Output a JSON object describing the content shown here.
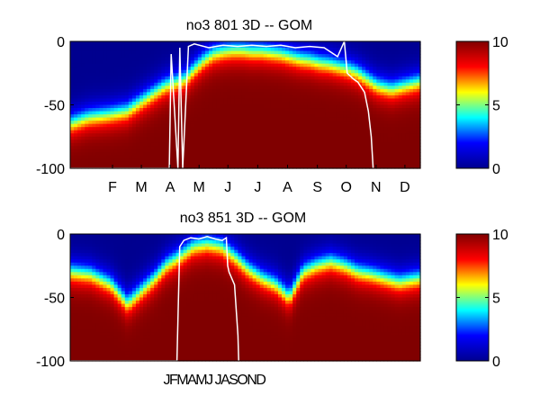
{
  "colormap": "jet",
  "colormap_stops": [
    "#00008f",
    "#0000ff",
    "#00ffff",
    "#ffff00",
    "#ff0000",
    "#800000"
  ],
  "contour_line_color": "#ffffff",
  "chart_data": [
    {
      "type": "heatmap",
      "title": "no3  801 3D   -- GOM",
      "xlabel": "",
      "ylabel": "",
      "ylim": [
        -100,
        0
      ],
      "yticks": [
        0,
        -50,
        -100
      ],
      "ytick_labels": [
        "0",
        "-50",
        "-100"
      ],
      "xtick_labels": [
        "F",
        "M",
        "A",
        "M",
        "J",
        "J",
        "A",
        "S",
        "O",
        "N",
        "D"
      ],
      "xtick_days": [
        45,
        75,
        105,
        135,
        165,
        196,
        227,
        258,
        288,
        319,
        349
      ],
      "xlim": [
        1,
        365
      ],
      "colorbar": {
        "min": 0,
        "max": 10,
        "ticks": [
          0,
          5,
          10
        ],
        "tick_labels": [
          "0",
          "5",
          "10"
        ]
      },
      "nutricline_depth_profile": {
        "days": [
          1,
          20,
          40,
          60,
          80,
          100,
          120,
          130,
          140,
          150,
          160,
          170,
          180,
          190,
          200,
          210,
          220,
          230,
          240,
          250,
          260,
          270,
          280,
          290,
          300,
          310,
          320,
          335,
          350,
          365
        ],
        "depth_m": [
          -65,
          -60,
          -58,
          -55,
          -45,
          -35,
          -30,
          -22,
          -15,
          -10,
          -8,
          -7,
          -7,
          -8,
          -8,
          -9,
          -10,
          -12,
          -14,
          -15,
          -17,
          -18,
          -20,
          -22,
          -25,
          -30,
          -35,
          -38,
          -35,
          -32
        ]
      },
      "mixed_layer_depth": {
        "days": [
          1,
          104,
          106,
          113,
          115,
          118,
          124,
          130,
          145,
          160,
          175,
          190,
          205,
          220,
          235,
          250,
          265,
          279,
          286,
          289,
          296,
          300,
          307,
          311,
          314,
          316
        ],
        "depth_m": [
          -100,
          -100,
          -10,
          -100,
          -5,
          -100,
          -4,
          -2,
          -5,
          -3,
          -4,
          -3,
          -4,
          -3,
          -5,
          -4,
          -5,
          -12,
          0,
          -25,
          -30,
          -32,
          -40,
          -55,
          -75,
          -100
        ]
      }
    },
    {
      "type": "heatmap",
      "title": "no3  851 3D   -- GOM",
      "xlabel": "",
      "ylabel": "",
      "ylim": [
        -100,
        0
      ],
      "yticks": [
        0,
        -50,
        -100
      ],
      "ytick_labels": [
        "0",
        "-50",
        "-100"
      ],
      "xtick_labels": [
        "JFMAMJ JASOND"
      ],
      "xlim": [
        1,
        2555
      ],
      "colorbar": {
        "min": 0,
        "max": 10,
        "ticks": [
          0,
          5,
          10
        ],
        "tick_labels": [
          "0",
          "5",
          "10"
        ]
      },
      "nutricline_depth_profile": {
        "days": [
          1,
          150,
          300,
          420,
          520,
          620,
          700,
          800,
          900,
          1000,
          1100,
          1200,
          1300,
          1400,
          1500,
          1600,
          1700,
          1800,
          1900,
          2000,
          2100,
          2200,
          2300,
          2400,
          2555
        ],
        "depth_m": [
          -30,
          -32,
          -40,
          -55,
          -45,
          -35,
          -25,
          -18,
          -10,
          -8,
          -10,
          -18,
          -28,
          -35,
          -40,
          -50,
          -30,
          -25,
          -22,
          -25,
          -30,
          -32,
          -35,
          -38,
          -35
        ]
      },
      "mixed_layer_depth": {
        "days": [
          1,
          780,
          800,
          830,
          880,
          940,
          1000,
          1060,
          1110,
          1140,
          1150,
          1160,
          1200,
          1225,
          1230
        ],
        "depth_m": [
          -100,
          -100,
          -10,
          -5,
          -3,
          -4,
          -2,
          -4,
          -5,
          -3,
          -25,
          -30,
          -40,
          -80,
          -100
        ]
      }
    }
  ]
}
